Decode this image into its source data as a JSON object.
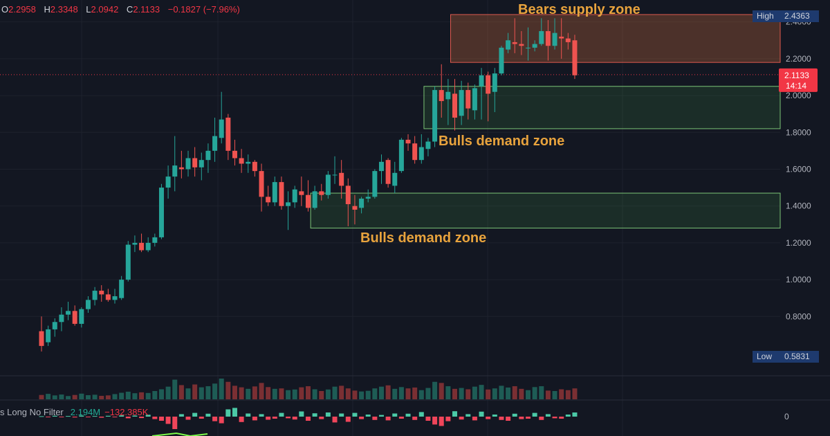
{
  "ohlc": {
    "o_label": "O",
    "o": "2.2958",
    "h_label": "H",
    "h": "2.3348",
    "l_label": "L",
    "l": "2.0942",
    "c_label": "C",
    "c": "2.1133",
    "change": "−0.1827 (−7.96%)"
  },
  "indicator": {
    "name": "s Long No Filter",
    "value1": "2.194M",
    "value2": "−132.385K",
    "zero_label": "0"
  },
  "price_tag": {
    "price": "2.1133",
    "countdown": "14:14"
  },
  "high_tag": {
    "label": "High",
    "value": "2.4363"
  },
  "low_tag": {
    "label": "Low",
    "value": "0.5831"
  },
  "colors": {
    "background": "#131722",
    "up": "#26a69a",
    "down": "#ef5350",
    "supply_zone": "#c8693a",
    "demand_zone": "#4caf50",
    "annotation": "#e8a33d",
    "price_tag": "#f23645"
  },
  "chart_data": {
    "type": "candlestick",
    "ylim": [
      0.56,
      2.48
    ],
    "yticks": [
      "2.4000",
      "2.2000",
      "2.0000",
      "1.8000",
      "1.6000",
      "1.4000",
      "1.2000",
      "1.0000",
      "0.8000"
    ],
    "candles": [
      [
        0.72,
        0.8,
        0.61,
        0.64
      ],
      [
        0.66,
        0.75,
        0.64,
        0.73
      ],
      [
        0.73,
        0.79,
        0.69,
        0.77
      ],
      [
        0.77,
        0.85,
        0.72,
        0.81
      ],
      [
        0.81,
        0.88,
        0.78,
        0.83
      ],
      [
        0.83,
        0.86,
        0.75,
        0.76
      ],
      [
        0.76,
        0.85,
        0.74,
        0.84
      ],
      [
        0.84,
        0.91,
        0.82,
        0.89
      ],
      [
        0.89,
        0.96,
        0.86,
        0.94
      ],
      [
        0.94,
        0.97,
        0.88,
        0.92
      ],
      [
        0.92,
        0.95,
        0.88,
        0.89
      ],
      [
        0.89,
        0.95,
        0.87,
        0.91
      ],
      [
        0.9,
        1.02,
        0.89,
        1.0
      ],
      [
        1.0,
        1.21,
        0.99,
        1.19
      ],
      [
        1.19,
        1.24,
        1.15,
        1.2
      ],
      [
        1.2,
        1.25,
        1.15,
        1.16
      ],
      [
        1.16,
        1.23,
        1.15,
        1.2
      ],
      [
        1.2,
        1.25,
        1.18,
        1.23
      ],
      [
        1.23,
        1.52,
        1.22,
        1.5
      ],
      [
        1.5,
        1.62,
        1.44,
        1.56
      ],
      [
        1.56,
        1.78,
        1.48,
        1.62
      ],
      [
        1.61,
        1.7,
        1.55,
        1.6
      ],
      [
        1.6,
        1.7,
        1.56,
        1.66
      ],
      [
        1.66,
        1.72,
        1.56,
        1.61
      ],
      [
        1.61,
        1.69,
        1.54,
        1.65
      ],
      [
        1.65,
        1.74,
        1.58,
        1.7
      ],
      [
        1.7,
        1.88,
        1.64,
        1.78
      ],
      [
        1.77,
        2.02,
        1.74,
        1.87
      ],
      [
        1.88,
        1.9,
        1.65,
        1.7
      ],
      [
        1.7,
        1.76,
        1.62,
        1.66
      ],
      [
        1.66,
        1.71,
        1.58,
        1.63
      ],
      [
        1.63,
        1.68,
        1.58,
        1.64
      ],
      [
        1.64,
        1.65,
        1.56,
        1.59
      ],
      [
        1.59,
        1.63,
        1.37,
        1.45
      ],
      [
        1.45,
        1.51,
        1.4,
        1.42
      ],
      [
        1.42,
        1.56,
        1.4,
        1.53
      ],
      [
        1.53,
        1.56,
        1.38,
        1.4
      ],
      [
        1.4,
        1.48,
        1.27,
        1.42
      ],
      [
        1.42,
        1.51,
        1.39,
        1.49
      ],
      [
        1.48,
        1.56,
        1.4,
        1.46
      ],
      [
        1.46,
        1.54,
        1.37,
        1.39
      ],
      [
        1.39,
        1.51,
        1.38,
        1.48
      ],
      [
        1.48,
        1.52,
        1.43,
        1.46
      ],
      [
        1.46,
        1.59,
        1.44,
        1.57
      ],
      [
        1.57,
        1.67,
        1.52,
        1.57
      ],
      [
        1.58,
        1.65,
        1.44,
        1.51
      ],
      [
        1.51,
        1.55,
        1.29,
        1.41
      ],
      [
        1.4,
        1.46,
        1.3,
        1.38
      ],
      [
        1.39,
        1.45,
        1.36,
        1.44
      ],
      [
        1.44,
        1.49,
        1.42,
        1.45
      ],
      [
        1.45,
        1.6,
        1.44,
        1.59
      ],
      [
        1.59,
        1.68,
        1.52,
        1.64
      ],
      [
        1.65,
        1.66,
        1.5,
        1.52
      ],
      [
        1.51,
        1.64,
        1.47,
        1.58
      ],
      [
        1.59,
        1.77,
        1.58,
        1.76
      ],
      [
        1.76,
        1.79,
        1.7,
        1.74
      ],
      [
        1.74,
        1.78,
        1.63,
        1.65
      ],
      [
        1.65,
        1.79,
        1.63,
        1.72
      ],
      [
        1.71,
        1.77,
        1.67,
        1.75
      ],
      [
        1.75,
        2.05,
        1.72,
        2.03
      ],
      [
        2.03,
        2.17,
        1.88,
        1.97
      ],
      [
        1.98,
        2.09,
        1.84,
        2.02
      ],
      [
        2.01,
        2.09,
        1.81,
        1.88
      ],
      [
        1.89,
        2.08,
        1.84,
        2.03
      ],
      [
        2.03,
        2.07,
        1.87,
        1.93
      ],
      [
        1.92,
        2.06,
        1.87,
        2.04
      ],
      [
        2.05,
        2.15,
        1.87,
        2.11
      ],
      [
        2.11,
        2.13,
        1.86,
        2.01
      ],
      [
        2.02,
        2.15,
        1.91,
        2.12
      ],
      [
        2.12,
        2.27,
        2.11,
        2.26
      ],
      [
        2.25,
        2.34,
        2.23,
        2.3
      ],
      [
        2.29,
        2.42,
        2.23,
        2.28
      ],
      [
        2.28,
        2.35,
        2.22,
        2.27
      ],
      [
        2.26,
        2.37,
        2.19,
        2.26
      ],
      [
        2.26,
        2.3,
        2.24,
        2.28
      ],
      [
        2.28,
        2.42,
        2.27,
        2.35
      ],
      [
        2.35,
        2.41,
        2.19,
        2.27
      ],
      [
        2.27,
        2.42,
        2.25,
        2.34
      ],
      [
        2.32,
        2.42,
        2.2,
        2.31
      ],
      [
        2.31,
        2.34,
        2.25,
        2.29
      ],
      [
        2.3,
        2.33,
        2.09,
        2.11
      ]
    ],
    "volume": [
      2.0,
      2.5,
      1.8,
      2.2,
      1.5,
      2.0,
      2.6,
      1.9,
      2.1,
      1.6,
      1.8,
      2.4,
      3.0,
      3.5,
      2.8,
      3.2,
      2.9,
      3.8,
      4.6,
      5.8,
      9.0,
      6.5,
      5.0,
      6.8,
      5.5,
      6.0,
      7.2,
      9.5,
      8.0,
      6.2,
      5.5,
      4.8,
      5.9,
      7.5,
      5.6,
      4.8,
      5.0,
      4.2,
      4.5,
      5.5,
      6.0,
      4.6,
      3.8,
      4.5,
      5.8,
      6.2,
      5.0,
      4.0,
      3.6,
      3.9,
      5.0,
      5.8,
      6.4,
      4.8,
      5.6,
      5.0,
      5.4,
      4.2,
      5.2,
      8.0,
      7.5,
      6.0,
      4.8,
      5.2,
      4.6,
      5.8,
      6.6,
      4.5,
      5.0,
      6.2,
      5.4,
      6.0,
      4.8,
      4.2,
      5.6,
      6.0,
      4.0,
      3.8,
      4.6,
      4.2,
      5.0
    ],
    "oscillator": [
      0.2,
      -0.3,
      0.4,
      -0.2,
      0.3,
      -0.4,
      0.5,
      -0.3,
      0.3,
      -0.5,
      0.4,
      -0.3,
      0.6,
      -0.8,
      0.5,
      -0.7,
      0.9,
      -1.2,
      -2.0,
      -3.5,
      -6.0,
      1.2,
      -1.5,
      1.8,
      -1.0,
      1.4,
      -2.2,
      -3.2,
      3.5,
      4.2,
      -2.6,
      1.5,
      -1.8,
      1.2,
      -1.5,
      -1.0,
      1.8,
      -0.8,
      -1.4,
      2.5,
      -2.0,
      1.6,
      -1.2,
      2.0,
      -2.8,
      1.5,
      -2.5,
      1.8,
      -1.2,
      1.0,
      -1.6,
      0.8,
      -1.8,
      1.5,
      -1.0,
      1.4,
      -1.6,
      2.2,
      -2.0,
      -3.8,
      -4.5,
      -2.2,
      2.6,
      -1.4,
      1.2,
      -1.8,
      2.4,
      -1.2,
      1.0,
      -1.6,
      -2.0,
      1.4,
      -1.2,
      -1.0,
      1.8,
      -1.6,
      1.2,
      -0.8,
      -1.0,
      1.0,
      2.0
    ],
    "zones": [
      {
        "label": "Bears supply zone",
        "kind": "supply",
        "from_index": 62,
        "y_low": 2.18,
        "y_high": 2.44
      },
      {
        "label": "Bulls demand zone",
        "kind": "demand",
        "from_index": 58,
        "y_low": 1.82,
        "y_high": 2.05
      },
      {
        "label": "Bulls demand zone",
        "kind": "demand",
        "from_index": 41,
        "y_low": 1.28,
        "y_high": 1.47
      }
    ]
  }
}
